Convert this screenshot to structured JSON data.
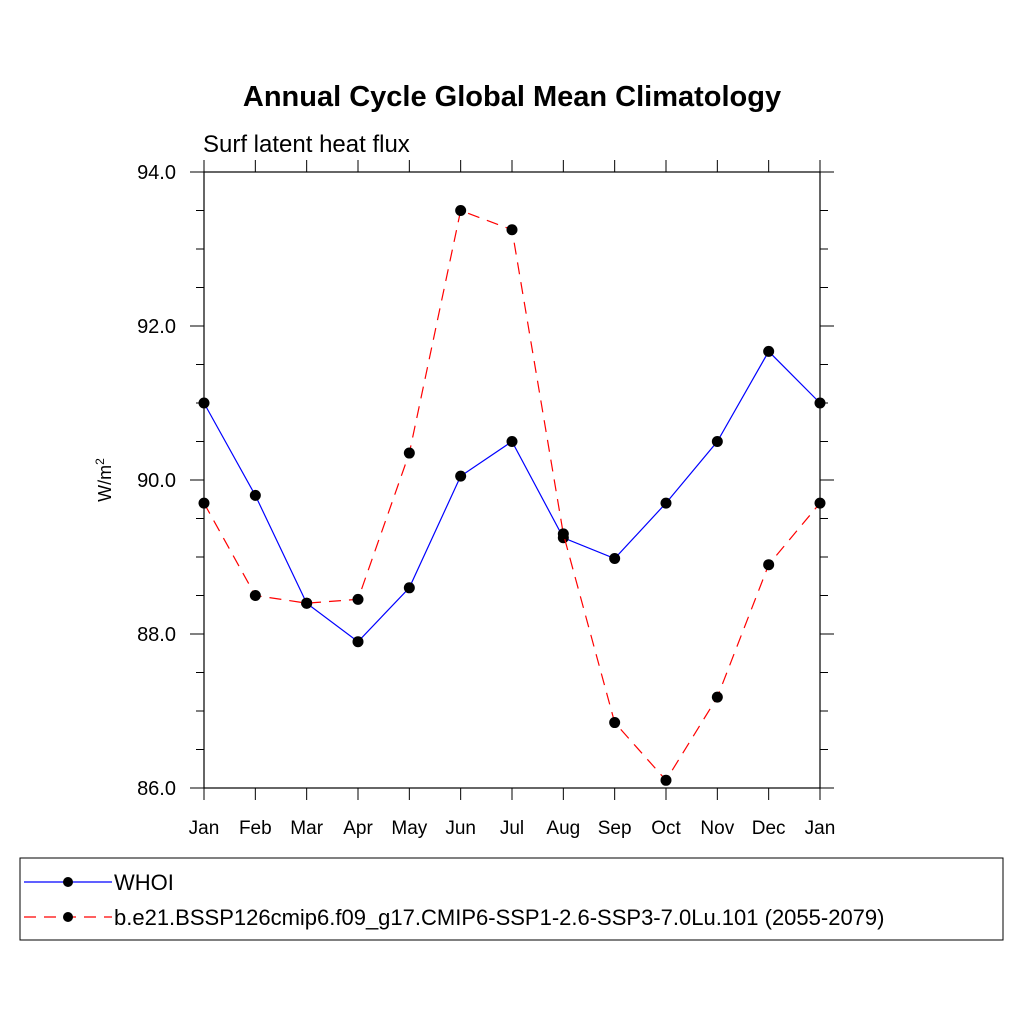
{
  "chart_data": {
    "type": "line",
    "title": "Annual Cycle Global Mean Climatology",
    "subtitle": "Surf latent heat flux",
    "ylabel_base": "W/m",
    "ylabel_sup": "2",
    "xlabel": "",
    "categories": [
      "Jan",
      "Feb",
      "Mar",
      "Apr",
      "May",
      "Jun",
      "Jul",
      "Aug",
      "Sep",
      "Oct",
      "Nov",
      "Dec",
      "Jan"
    ],
    "ylim": [
      86.0,
      94.0
    ],
    "yticks": [
      "86.0",
      "88.0",
      "90.0",
      "92.0",
      "94.0"
    ],
    "grid": false,
    "legend_position": "bottom",
    "series": [
      {
        "name": "WHOI",
        "color": "#0000ff",
        "dash": "solid",
        "values": [
          91.0,
          89.8,
          88.4,
          87.9,
          88.6,
          90.05,
          90.5,
          89.25,
          88.98,
          89.7,
          90.5,
          91.67,
          91.0
        ]
      },
      {
        "name": "b.e21.BSSP126cmip6.f09_g17.CMIP6-SSP1-2.6-SSP3-7.0Lu.101 (2055-2079)",
        "color": "#ff0000",
        "dash": "dashed",
        "values": [
          89.7,
          88.5,
          88.4,
          88.45,
          90.35,
          93.5,
          93.25,
          89.3,
          86.85,
          86.1,
          87.18,
          88.9,
          89.7
        ]
      }
    ]
  }
}
